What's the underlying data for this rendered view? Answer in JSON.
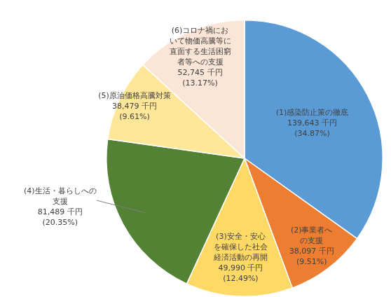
{
  "chart_data": {
    "type": "pie",
    "categories": [
      "(1)感染防止策の徹底",
      "(2)事業者への支援",
      "(3)安全・安心を確保した社会経済活動の再開",
      "(4)生活・暮らしへの支援",
      "(5)原油価格高騰対策",
      "(6)コロナ禍において物価高騰等に直面する生活困窮者等への支援"
    ],
    "values": [
      139643,
      38097,
      49990,
      81489,
      38479,
      52745
    ],
    "value_labels": [
      "139,643 千円",
      "38,097 千円",
      "49,990 千円",
      "81,489 千円",
      "38,479 千円",
      "52,745 千円"
    ],
    "percentages": [
      34.87,
      9.51,
      12.49,
      20.35,
      9.61,
      13.17
    ],
    "percentage_labels": [
      "(34.87%)",
      "(9.51%)",
      "(12.49%)",
      "(20.35%)",
      "(9.61%)",
      "(13.17%)"
    ],
    "colors": [
      "#5b9bd5",
      "#ed7d31",
      "#ffd966",
      "#548235",
      "#ffe699",
      "#fbe5d6"
    ],
    "data_labels": true
  }
}
